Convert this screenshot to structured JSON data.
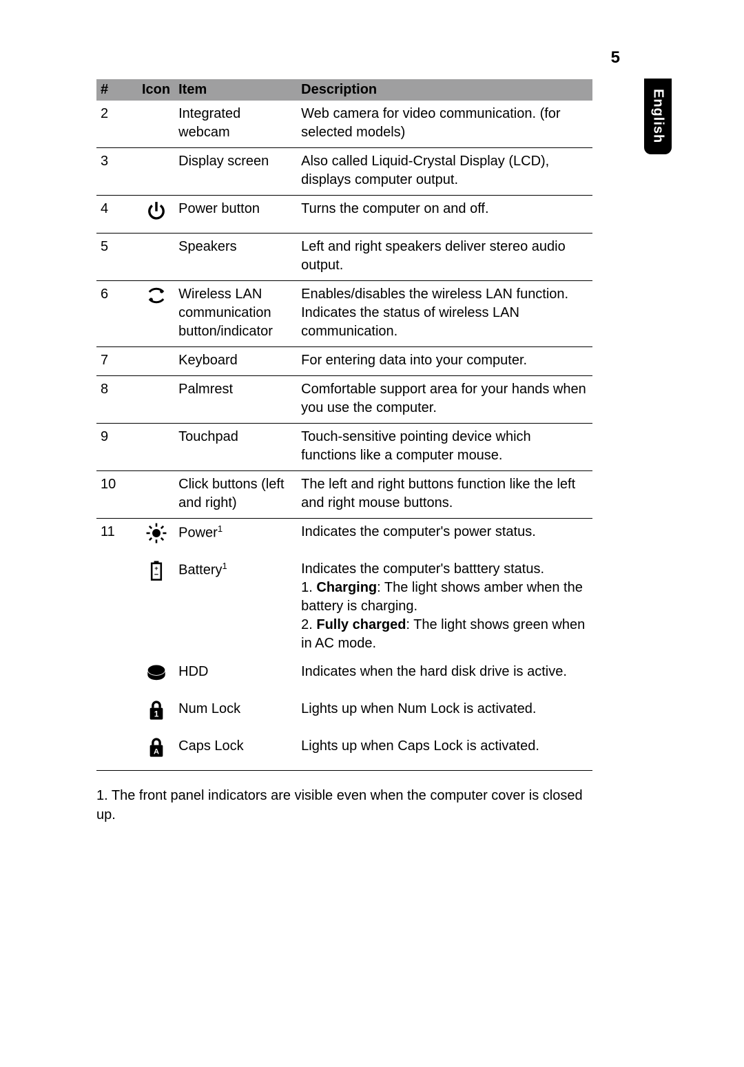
{
  "page_number": "5",
  "side_tab": "English",
  "header": {
    "num": "#",
    "icon": "Icon",
    "item": "Item",
    "desc": "Description"
  },
  "rows": [
    {
      "num": "2",
      "icon": null,
      "item": "Integrated webcam",
      "desc": "Web camera for video communication. (for selected models)"
    },
    {
      "num": "3",
      "icon": null,
      "item": "Display screen",
      "desc": "Also called Liquid-Crystal Display (LCD), displays computer output."
    },
    {
      "num": "4",
      "icon": "power-button",
      "item": "Power button",
      "desc": "Turns the computer on and off."
    },
    {
      "num": "5",
      "icon": null,
      "item": "Speakers",
      "desc": "Left and right speakers deliver stereo audio output."
    },
    {
      "num": "6",
      "icon": "wifi",
      "item": "Wireless LAN communication button/indicator",
      "desc": "Enables/disables the wireless LAN function. Indicates the status of wireless LAN communication."
    },
    {
      "num": "7",
      "icon": null,
      "item": "Keyboard",
      "desc": "For entering data into your computer."
    },
    {
      "num": "8",
      "icon": null,
      "item": "Palmrest",
      "desc": "Comfortable support area for your hands when you use the computer."
    },
    {
      "num": "9",
      "icon": null,
      "item": "Touchpad",
      "desc": "Touch-sensitive pointing device which functions like a computer mouse."
    },
    {
      "num": "10",
      "icon": null,
      "item": "Click buttons (left and right)",
      "desc": "The left and right buttons function like the left and right mouse buttons."
    }
  ],
  "row11": {
    "num": "11",
    "sub": [
      {
        "icon": "power-light",
        "item_html": "Power<sup>1</sup>",
        "desc_html": "Indicates the computer's power status."
      },
      {
        "icon": "battery",
        "item_html": "Battery<sup>1</sup>",
        "desc_html": "Indicates the computer's batttery status.<br>1. <b>Charging</b>: The light shows amber when the battery is charging.<br>2. <b>Fully charged</b>: The light shows green when in AC mode."
      },
      {
        "icon": "hdd",
        "item_html": "HDD",
        "desc_html": "Indicates when the hard disk drive is active."
      },
      {
        "icon": "num-lock",
        "item_html": "Num Lock",
        "desc_html": "Lights up when Num Lock is activated."
      },
      {
        "icon": "caps-lock",
        "item_html": "Caps Lock",
        "desc_html": "Lights up when Caps Lock is activated."
      }
    ]
  },
  "footnote": "1. The front panel indicators are visible even when the computer cover is closed up.",
  "colors": {
    "header_bg": "#9f9fa0",
    "text": "#000000",
    "bg": "#ffffff"
  }
}
